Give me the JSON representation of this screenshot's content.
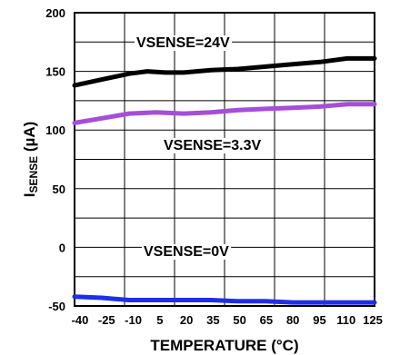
{
  "chart_data": {
    "type": "line",
    "title": "",
    "xlabel": "TEMPERATURE (°C)",
    "ylabel_main": "I",
    "ylabel_sub": "SENSE",
    "ylabel_unit": " (µA)",
    "xlim": [
      -40,
      125
    ],
    "ylim": [
      -50,
      200
    ],
    "xticks": [
      -40,
      -25,
      -10,
      5,
      20,
      35,
      50,
      65,
      80,
      95,
      110,
      125
    ],
    "yticks": [
      -50,
      0,
      50,
      100,
      150,
      200
    ],
    "grid": true,
    "series": [
      {
        "name": "VSENSE=24V",
        "color": "#000000",
        "points": [
          [
            -40,
            138
          ],
          [
            -25,
            143
          ],
          [
            -10,
            148
          ],
          [
            0,
            150
          ],
          [
            10,
            149
          ],
          [
            20,
            149
          ],
          [
            35,
            151
          ],
          [
            50,
            152
          ],
          [
            65,
            154
          ],
          [
            80,
            156
          ],
          [
            95,
            158
          ],
          [
            110,
            161
          ],
          [
            125,
            161
          ]
        ]
      },
      {
        "name": "VSENSE=3.3V",
        "color": "#a64dd9",
        "points": [
          [
            -40,
            106
          ],
          [
            -25,
            110
          ],
          [
            -10,
            114
          ],
          [
            5,
            115
          ],
          [
            20,
            114
          ],
          [
            35,
            115
          ],
          [
            50,
            117
          ],
          [
            65,
            118
          ],
          [
            80,
            119
          ],
          [
            95,
            120
          ],
          [
            110,
            122
          ],
          [
            125,
            122
          ]
        ]
      },
      {
        "name": "VSENSE=0V",
        "color": "#1f2fe6",
        "points": [
          [
            -40,
            -42
          ],
          [
            -25,
            -43
          ],
          [
            -10,
            -45
          ],
          [
            5,
            -45
          ],
          [
            20,
            -45
          ],
          [
            35,
            -45
          ],
          [
            50,
            -46
          ],
          [
            65,
            -46
          ],
          [
            80,
            -47
          ],
          [
            95,
            -47
          ],
          [
            110,
            -47
          ],
          [
            125,
            -47
          ]
        ]
      }
    ]
  }
}
